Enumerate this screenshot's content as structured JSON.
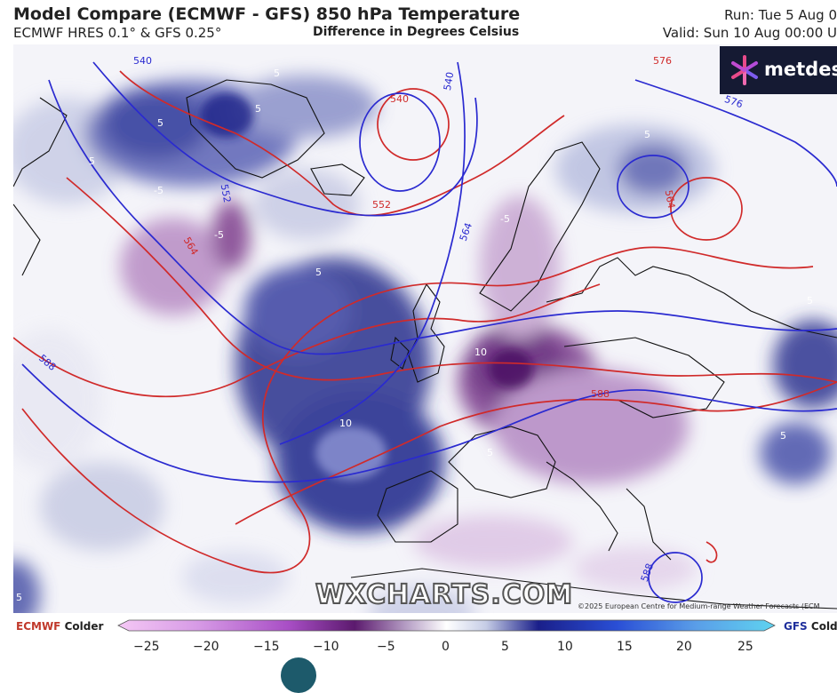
{
  "header": {
    "title": "Model Compare (ECMWF - GFS) 850 hPa Temperature",
    "subtitle_left": "ECMWF HRES 0.1° & GFS 0.25°",
    "subtitle_center": "Difference in Degrees Celsius",
    "run": "Run: Tue 5 Aug 0",
    "valid": "Valid: Sun 10 Aug 00:00 U"
  },
  "logo": {
    "text": "metdes",
    "icon": "metdesk-star-icon"
  },
  "watermark": "WXCHARTS.COM",
  "copyright": "©2025 European Centre for Medium-range Weather Forecasts (ECM",
  "legend": {
    "left_model": "ECMWF",
    "left_label": "Colder",
    "right_model": "GFS",
    "right_label": "Colder",
    "ticks": [
      "−25",
      "−20",
      "−15",
      "−10",
      "−5",
      "0",
      "5",
      "10",
      "15",
      "20",
      "25"
    ],
    "colors": {
      "purple_dark": "#5c1a6e",
      "purple_light": "#e8d6ef",
      "neutral": "#ffffff",
      "blue_light": "#d4dcef",
      "blue_dark": "#1a1f8a",
      "cyan_end": "#5fd3f0",
      "ecmwf_contour": "#d02a2a",
      "gfs_contour": "#2a2ad0"
    }
  },
  "map_labels": {
    "diff": [
      "5",
      "5",
      "5",
      "5",
      "-5",
      "-5",
      "5",
      "10",
      "10",
      "5",
      "-5",
      "5",
      "5",
      "5",
      "5"
    ],
    "contours": [
      "540",
      "540",
      "552",
      "552",
      "564",
      "564",
      "576",
      "564",
      "576",
      "588",
      "588",
      "588",
      "540"
    ]
  }
}
